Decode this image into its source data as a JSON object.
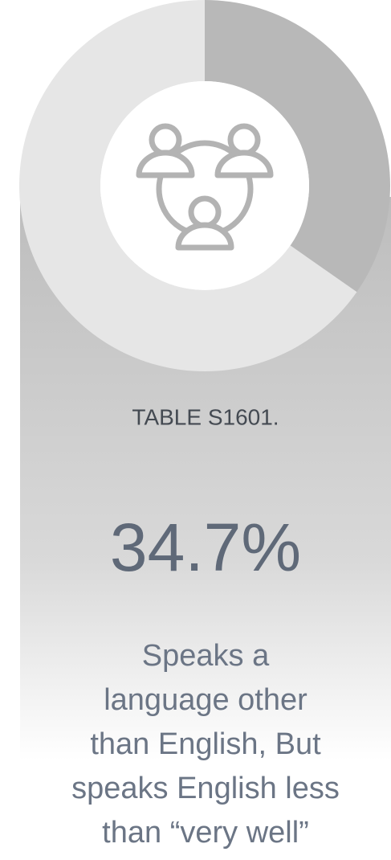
{
  "chart_data": {
    "type": "donut",
    "categories": [
      null,
      null
    ],
    "values": [
      34.7,
      65.3
    ],
    "value_labels": [
      "34.7%",
      null
    ],
    "colors": [
      "#b8b8b8",
      "#e6e6e6"
    ],
    "source": "TABLE S1601.",
    "description": [
      "Speaks a",
      "language other",
      "than English, But",
      "speaks English less",
      "than “very well”"
    ]
  }
}
